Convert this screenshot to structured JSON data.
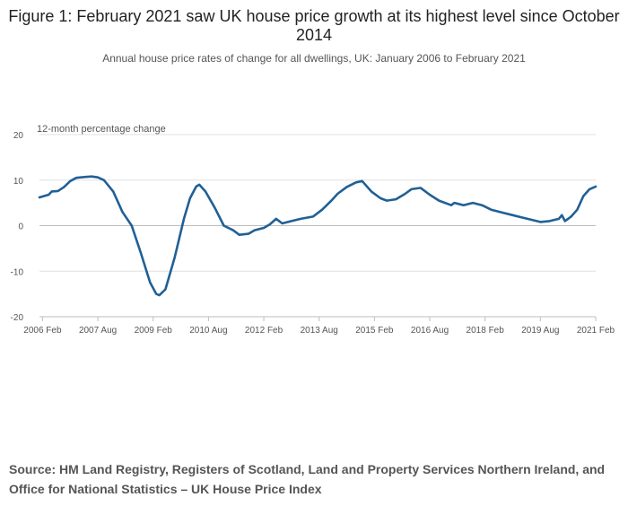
{
  "title": "Figure 1: February 2021 saw UK house price growth at its highest level since October 2014",
  "subtitle": "Annual house price rates of change for all dwellings, UK: January 2006 to February 2021",
  "source": "Source: HM Land Registry, Registers of Scotland, Land and Property Services Northern Ireland, and Office for National Statistics – UK House Price Index",
  "chart_data": {
    "type": "line",
    "title": "Figure 1: February 2021 saw UK house price growth at its highest level since October 2014",
    "subtitle": "Annual house price rates of change for all dwellings, UK: January 2006 to February 2021",
    "ylabel": "12-month percentage change",
    "xlabel": "",
    "ylim": [
      -20,
      20
    ],
    "yticks": [
      20,
      10,
      0,
      -10,
      -20
    ],
    "xlim": [
      "2006-01",
      "2021-02"
    ],
    "xtick_labels": [
      {
        "date": "2006-02",
        "label": "2006 Feb"
      },
      {
        "date": "2007-08",
        "label": "2007 Aug"
      },
      {
        "date": "2009-02",
        "label": "2009 Feb"
      },
      {
        "date": "2010-08",
        "label": "2010 Aug"
      },
      {
        "date": "2012-02",
        "label": "2012 Feb"
      },
      {
        "date": "2013-08",
        "label": "2013 Aug"
      },
      {
        "date": "2015-02",
        "label": "2015 Feb"
      },
      {
        "date": "2016-08",
        "label": "2016 Aug"
      },
      {
        "date": "2018-02",
        "label": "2018 Feb"
      },
      {
        "date": "2019-08",
        "label": "2019 Aug"
      },
      {
        "date": "2021-02",
        "label": "2021 Feb"
      }
    ],
    "grid": true,
    "color": "#206095",
    "series": [
      {
        "points": [
          [
            "2006-01",
            6.2
          ],
          [
            "2006-04",
            6.8
          ],
          [
            "2006-05",
            7.5
          ],
          [
            "2006-07",
            7.6
          ],
          [
            "2006-09",
            8.5
          ],
          [
            "2006-11",
            9.8
          ],
          [
            "2007-01",
            10.5
          ],
          [
            "2007-04",
            10.7
          ],
          [
            "2007-06",
            10.8
          ],
          [
            "2007-08",
            10.6
          ],
          [
            "2007-10",
            10.0
          ],
          [
            "2008-01",
            7.5
          ],
          [
            "2008-04",
            3.0
          ],
          [
            "2008-07",
            0.0
          ],
          [
            "2008-10",
            -6.0
          ],
          [
            "2009-01",
            -12.5
          ],
          [
            "2009-03",
            -15.0
          ],
          [
            "2009-04",
            -15.3
          ],
          [
            "2009-06",
            -14.0
          ],
          [
            "2009-09",
            -7.0
          ],
          [
            "2009-12",
            1.5
          ],
          [
            "2010-02",
            6.0
          ],
          [
            "2010-04",
            8.6
          ],
          [
            "2010-05",
            9.0
          ],
          [
            "2010-07",
            7.5
          ],
          [
            "2010-10",
            4.0
          ],
          [
            "2011-01",
            0.0
          ],
          [
            "2011-04",
            -1.0
          ],
          [
            "2011-06",
            -2.0
          ],
          [
            "2011-09",
            -1.8
          ],
          [
            "2011-11",
            -1.0
          ],
          [
            "2012-02",
            -0.5
          ],
          [
            "2012-04",
            0.3
          ],
          [
            "2012-06",
            1.5
          ],
          [
            "2012-08",
            0.5
          ],
          [
            "2012-11",
            1.0
          ],
          [
            "2013-02",
            1.5
          ],
          [
            "2013-06",
            2.0
          ],
          [
            "2013-09",
            3.5
          ],
          [
            "2013-12",
            5.5
          ],
          [
            "2014-02",
            7.0
          ],
          [
            "2014-05",
            8.5
          ],
          [
            "2014-08",
            9.5
          ],
          [
            "2014-10",
            9.8
          ],
          [
            "2015-01",
            7.5
          ],
          [
            "2015-04",
            6.0
          ],
          [
            "2015-06",
            5.5
          ],
          [
            "2015-09",
            5.8
          ],
          [
            "2015-12",
            7.0
          ],
          [
            "2016-02",
            8.0
          ],
          [
            "2016-05",
            8.3
          ],
          [
            "2016-08",
            6.8
          ],
          [
            "2016-11",
            5.5
          ],
          [
            "2017-03",
            4.5
          ],
          [
            "2017-04",
            5.0
          ],
          [
            "2017-07",
            4.5
          ],
          [
            "2017-10",
            5.0
          ],
          [
            "2018-01",
            4.5
          ],
          [
            "2018-04",
            3.5
          ],
          [
            "2018-08",
            2.8
          ],
          [
            "2018-11",
            2.3
          ],
          [
            "2019-02",
            1.8
          ],
          [
            "2019-05",
            1.3
          ],
          [
            "2019-08",
            0.8
          ],
          [
            "2019-11",
            1.0
          ],
          [
            "2020-02",
            1.5
          ],
          [
            "2020-03",
            2.3
          ],
          [
            "2020-04",
            1.0
          ],
          [
            "2020-06",
            2.0
          ],
          [
            "2020-08",
            3.5
          ],
          [
            "2020-10",
            6.5
          ],
          [
            "2020-12",
            8.0
          ],
          [
            "2021-02",
            8.6
          ]
        ]
      }
    ]
  }
}
